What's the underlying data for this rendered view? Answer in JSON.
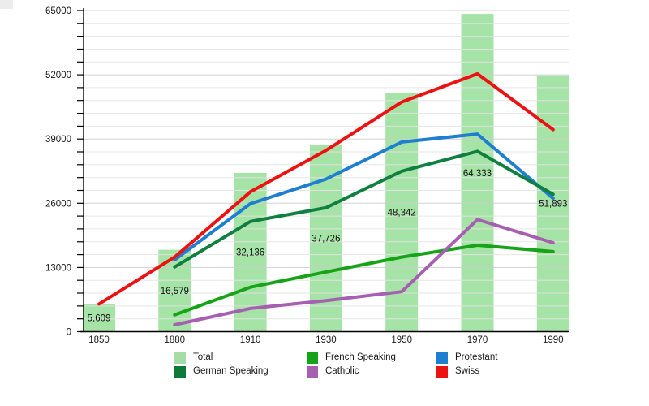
{
  "chart_data": {
    "type": "bar+line",
    "title": "",
    "xlabel": "",
    "ylabel": "",
    "categories": [
      "1850",
      "1880",
      "1910",
      "1930",
      "1950",
      "1970",
      "1990"
    ],
    "bars": {
      "name": "Total",
      "color": "#a6e3a6",
      "values": [
        5609,
        16579,
        32136,
        37726,
        48342,
        64333,
        51893
      ],
      "labels": [
        "5,609",
        "16,579",
        "32,136",
        "37,726",
        "48,342",
        "64,333",
        "51,893"
      ]
    },
    "series": [
      {
        "name": "French Speaking",
        "color": "#17a317",
        "values": [
          null,
          3400,
          9000,
          12100,
          15100,
          17500,
          16200
        ]
      },
      {
        "name": "Protestant",
        "color": "#1e7ecf",
        "values": [
          null,
          14550,
          25900,
          30900,
          38400,
          40000,
          27000
        ]
      },
      {
        "name": "German Speaking",
        "color": "#108040",
        "values": [
          null,
          13100,
          22300,
          25100,
          32500,
          36500,
          27800
        ]
      },
      {
        "name": "Catholic",
        "color": "#a75fb1",
        "values": [
          null,
          1400,
          4700,
          6300,
          8100,
          22700,
          18000
        ]
      },
      {
        "name": "Swiss",
        "color": "#ee1111",
        "values": [
          5609,
          15100,
          28300,
          36700,
          46500,
          52200,
          40900
        ]
      }
    ],
    "ylim": [
      0,
      65000
    ],
    "y_ticks": {
      "values": [
        0,
        13000,
        26000,
        39000,
        52000,
        65000
      ],
      "labels": [
        "0",
        "13000",
        "26000",
        "39000",
        "52000",
        "65000"
      ]
    },
    "minor_tick_step": 2600,
    "grid": "horizontal",
    "legend": {
      "position": "bottom",
      "items": [
        {
          "label": "Total",
          "color": "#a6dca6",
          "marker": "bar"
        },
        {
          "label": "French Speaking",
          "color": "#17a317",
          "marker": "line"
        },
        {
          "label": "Protestant",
          "color": "#1e7ecf",
          "marker": "line"
        },
        {
          "label": "German Speaking",
          "color": "#0e7a38",
          "marker": "line"
        },
        {
          "label": "Catholic",
          "color": "#a75fb1",
          "marker": "line"
        },
        {
          "label": "Swiss",
          "color": "#ee1111",
          "marker": "line"
        }
      ]
    }
  }
}
